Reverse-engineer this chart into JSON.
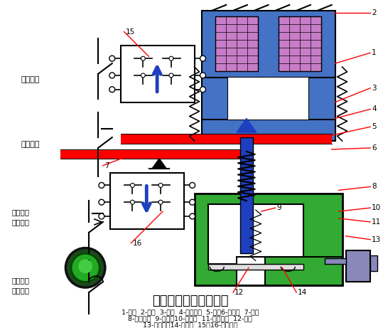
{
  "title": "通电延时型时间继电器",
  "background": "#ffffff",
  "label_lines": [
    "1-线圈  2-铁心  3-衔铁  4-反力弹簧  5-推板6-活塞杆  7-杠杆",
    "8-塔形弹簧  9-弱弹簧10-橡皮膜  11-空气室壁  12-活塞",
    "13-调节螺杆14-进气孔  15、16-微动开关"
  ],
  "colors": {
    "blue": "#1E3FBF",
    "light_blue": "#4472C4",
    "purple": "#C87DC8",
    "red": "#FF0000",
    "green": "#33AA33",
    "dark_green": "#1A5C1A",
    "black": "#000000",
    "white": "#FFFFFF",
    "gray_blue": "#8888BB",
    "dark_gray": "#555555"
  }
}
